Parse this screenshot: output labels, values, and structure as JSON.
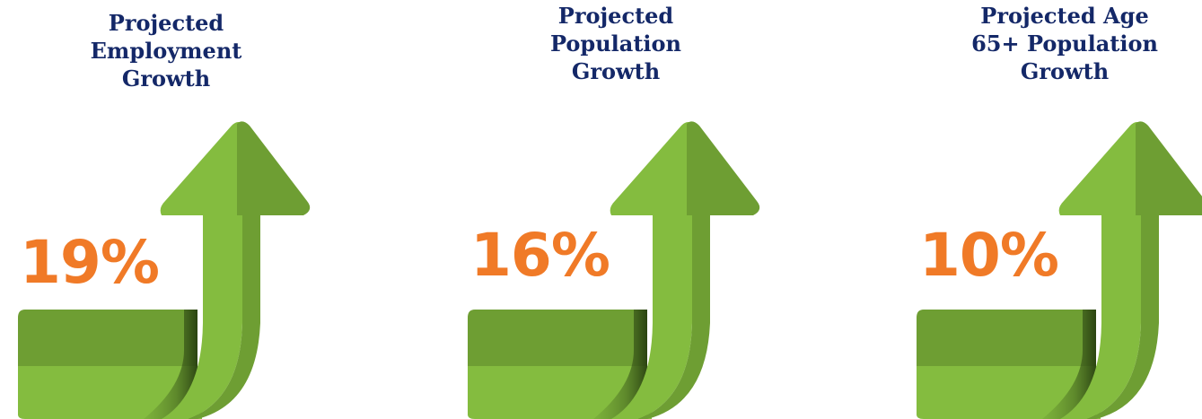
{
  "colors": {
    "title": "#142868",
    "value": "#F07A27",
    "arrow_light": "#84BC3F",
    "arrow_dark": "#6E9E33"
  },
  "stats": [
    {
      "title": "Projected\nEmployment\nGrowth",
      "value": "19%",
      "icon": "upward-curved-arrow-icon"
    },
    {
      "title": "Projected\nPopulation\nGrowth",
      "value": "16%",
      "icon": "upward-curved-arrow-icon"
    },
    {
      "title": "Projected Age\n65+ Population\nGrowth",
      "value": "10%",
      "icon": "upward-curved-arrow-icon"
    }
  ]
}
